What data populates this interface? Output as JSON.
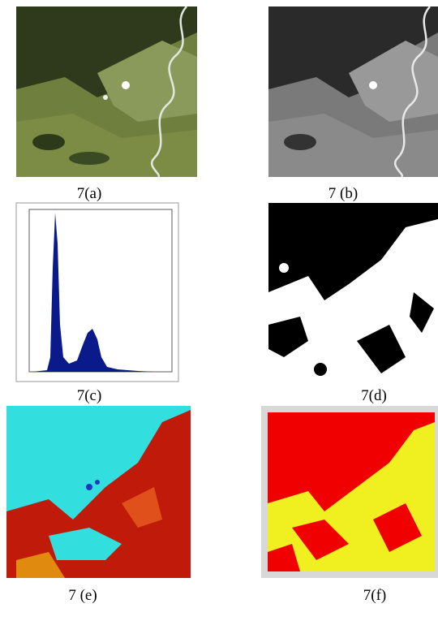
{
  "figure": {
    "panels": [
      {
        "caption": "7(a)"
      },
      {
        "caption": "7 (b)"
      },
      {
        "caption": "7(c)"
      },
      {
        "caption": "7(d)"
      },
      {
        "caption": "7 (e)"
      },
      {
        "caption": "7(f)"
      }
    ]
  }
}
